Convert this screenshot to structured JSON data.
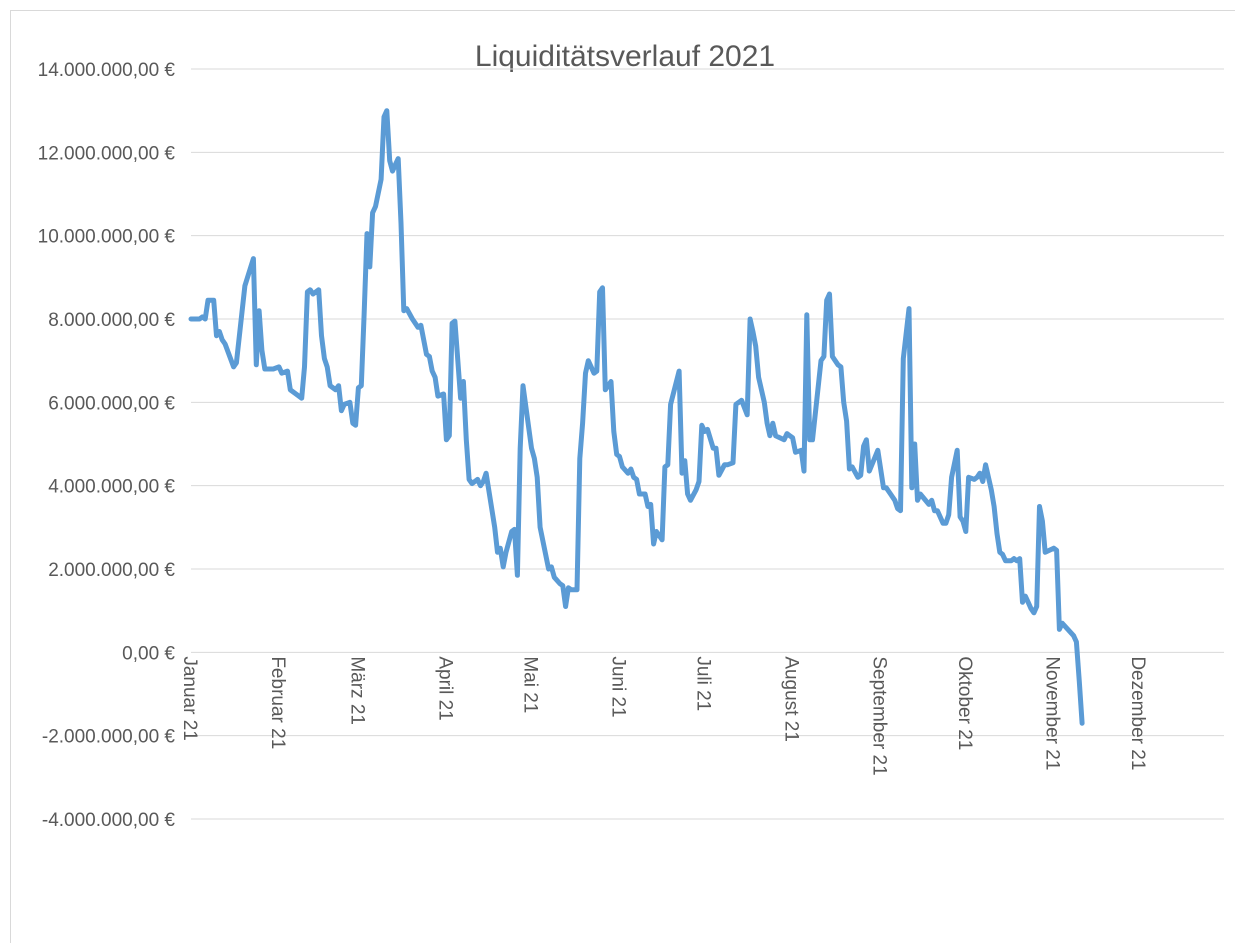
{
  "chart_data": {
    "type": "line",
    "title": "Liquiditätsverlauf 2021",
    "xlabel": "",
    "ylabel": "",
    "ylim": [
      -4000000,
      14000000
    ],
    "xlim": [
      1,
      365
    ],
    "grid": true,
    "legend": "none",
    "y_ticks": [
      -4000000,
      -2000000,
      0,
      2000000,
      4000000,
      6000000,
      8000000,
      10000000,
      12000000,
      14000000
    ],
    "y_tick_labels": [
      "-4.000.000,00 €",
      "-2.000.000,00 €",
      "0,00 €",
      "2.000.000,00 €",
      "4.000.000,00 €",
      "6.000.000,00 €",
      "8.000.000,00 €",
      "10.000.000,00 €",
      "12.000.000,00 €",
      "14.000.000,00 €"
    ],
    "x_ticks": [
      1,
      32,
      60,
      91,
      121,
      152,
      182,
      213,
      244,
      274,
      305,
      335
    ],
    "x_tick_labels": [
      "Januar 21",
      "Februar 21",
      "März 21",
      "April 21",
      "Mai 21",
      "Juni 21",
      "Juli 21",
      "August 21",
      "September 21",
      "Oktober 21",
      "November 21",
      "Dezember 21"
    ],
    "series_color": "#5b9bd5",
    "series": [
      {
        "values": [
          [
            1,
            8000000
          ],
          [
            4,
            8000000
          ],
          [
            5,
            8050000
          ],
          [
            6,
            8000000
          ],
          [
            7,
            8450000
          ],
          [
            9,
            8450000
          ],
          [
            10,
            7600000
          ],
          [
            11,
            7700000
          ],
          [
            12,
            7500000
          ],
          [
            13,
            7400000
          ],
          [
            16,
            6850000
          ],
          [
            17,
            6950000
          ],
          [
            20,
            8800000
          ],
          [
            23,
            9450000
          ],
          [
            24,
            6900000
          ],
          [
            25,
            8200000
          ],
          [
            26,
            7250000
          ],
          [
            27,
            6800000
          ],
          [
            28,
            6800000
          ],
          [
            30,
            6800000
          ],
          [
            32,
            6850000
          ],
          [
            33,
            6700000
          ],
          [
            35,
            6750000
          ],
          [
            36,
            6300000
          ],
          [
            38,
            6200000
          ],
          [
            40,
            6100000
          ],
          [
            41,
            6850000
          ],
          [
            42,
            8650000
          ],
          [
            43,
            8700000
          ],
          [
            44,
            8600000
          ],
          [
            46,
            8700000
          ],
          [
            47,
            7600000
          ],
          [
            48,
            7050000
          ],
          [
            49,
            6850000
          ],
          [
            50,
            6400000
          ],
          [
            52,
            6300000
          ],
          [
            53,
            6400000
          ],
          [
            54,
            5800000
          ],
          [
            55,
            5950000
          ],
          [
            57,
            6000000
          ],
          [
            58,
            5500000
          ],
          [
            59,
            5450000
          ],
          [
            60,
            6350000
          ],
          [
            61,
            6400000
          ],
          [
            62,
            8100000
          ],
          [
            63,
            10050000
          ],
          [
            64,
            9250000
          ],
          [
            65,
            10550000
          ],
          [
            66,
            10700000
          ],
          [
            68,
            11350000
          ],
          [
            69,
            12850000
          ],
          [
            70,
            13000000
          ],
          [
            71,
            11800000
          ],
          [
            72,
            11550000
          ],
          [
            73,
            11700000
          ],
          [
            74,
            11850000
          ],
          [
            75,
            10300000
          ],
          [
            76,
            8200000
          ],
          [
            77,
            8250000
          ],
          [
            79,
            8000000
          ],
          [
            81,
            7800000
          ],
          [
            82,
            7850000
          ],
          [
            84,
            7150000
          ],
          [
            85,
            7100000
          ],
          [
            86,
            6750000
          ],
          [
            87,
            6600000
          ],
          [
            88,
            6150000
          ],
          [
            90,
            6200000
          ],
          [
            91,
            5100000
          ],
          [
            92,
            5200000
          ],
          [
            93,
            7900000
          ],
          [
            94,
            7950000
          ],
          [
            96,
            6100000
          ],
          [
            97,
            6500000
          ],
          [
            98,
            5100000
          ],
          [
            99,
            4150000
          ],
          [
            100,
            4050000
          ],
          [
            102,
            4150000
          ],
          [
            103,
            4000000
          ],
          [
            104,
            4100000
          ],
          [
            105,
            4300000
          ],
          [
            108,
            3000000
          ],
          [
            109,
            2400000
          ],
          [
            110,
            2500000
          ],
          [
            111,
            2050000
          ],
          [
            112,
            2400000
          ],
          [
            114,
            2900000
          ],
          [
            115,
            2950000
          ],
          [
            116,
            1850000
          ],
          [
            117,
            4900000
          ],
          [
            118,
            6400000
          ],
          [
            121,
            4900000
          ],
          [
            122,
            4650000
          ],
          [
            123,
            4200000
          ],
          [
            124,
            3000000
          ],
          [
            127,
            2000000
          ],
          [
            128,
            2050000
          ],
          [
            129,
            1800000
          ],
          [
            131,
            1650000
          ],
          [
            132,
            1600000
          ],
          [
            133,
            1100000
          ],
          [
            134,
            1550000
          ],
          [
            135,
            1500000
          ],
          [
            137,
            1500000
          ],
          [
            138,
            4650000
          ],
          [
            139,
            5500000
          ],
          [
            140,
            6700000
          ],
          [
            141,
            7000000
          ],
          [
            143,
            6700000
          ],
          [
            144,
            6750000
          ],
          [
            145,
            8650000
          ],
          [
            146,
            8750000
          ],
          [
            147,
            6300000
          ],
          [
            149,
            6500000
          ],
          [
            150,
            5300000
          ],
          [
            151,
            4750000
          ],
          [
            152,
            4700000
          ],
          [
            153,
            4450000
          ],
          [
            155,
            4300000
          ],
          [
            156,
            4400000
          ],
          [
            157,
            4200000
          ],
          [
            158,
            4150000
          ],
          [
            159,
            3800000
          ],
          [
            161,
            3800000
          ],
          [
            162,
            3500000
          ],
          [
            163,
            3550000
          ],
          [
            164,
            2600000
          ],
          [
            165,
            2900000
          ],
          [
            167,
            2700000
          ],
          [
            168,
            4450000
          ],
          [
            169,
            4500000
          ],
          [
            170,
            5950000
          ],
          [
            173,
            6750000
          ],
          [
            174,
            4300000
          ],
          [
            175,
            4600000
          ],
          [
            176,
            3800000
          ],
          [
            177,
            3650000
          ],
          [
            179,
            3900000
          ],
          [
            180,
            4100000
          ],
          [
            181,
            5450000
          ],
          [
            182,
            5300000
          ],
          [
            183,
            5350000
          ],
          [
            185,
            4900000
          ],
          [
            186,
            4900000
          ],
          [
            187,
            4250000
          ],
          [
            189,
            4500000
          ],
          [
            190,
            4500000
          ],
          [
            192,
            4550000
          ],
          [
            193,
            5950000
          ],
          [
            195,
            6050000
          ],
          [
            197,
            5700000
          ],
          [
            198,
            8000000
          ],
          [
            199,
            7700000
          ],
          [
            200,
            7350000
          ],
          [
            201,
            6600000
          ],
          [
            203,
            6000000
          ],
          [
            204,
            5500000
          ],
          [
            205,
            5200000
          ],
          [
            206,
            5500000
          ],
          [
            207,
            5200000
          ],
          [
            210,
            5100000
          ],
          [
            211,
            5250000
          ],
          [
            212,
            5200000
          ],
          [
            213,
            5150000
          ],
          [
            214,
            4800000
          ],
          [
            216,
            4850000
          ],
          [
            217,
            4350000
          ],
          [
            218,
            8100000
          ],
          [
            219,
            5100000
          ],
          [
            220,
            5100000
          ],
          [
            223,
            7000000
          ],
          [
            224,
            7100000
          ],
          [
            225,
            8450000
          ],
          [
            226,
            8600000
          ],
          [
            227,
            7100000
          ],
          [
            229,
            6900000
          ],
          [
            230,
            6850000
          ],
          [
            231,
            6000000
          ],
          [
            232,
            5550000
          ],
          [
            233,
            4400000
          ],
          [
            234,
            4450000
          ],
          [
            236,
            4200000
          ],
          [
            237,
            4250000
          ],
          [
            238,
            4950000
          ],
          [
            239,
            5100000
          ],
          [
            240,
            4350000
          ],
          [
            243,
            4850000
          ],
          [
            245,
            3950000
          ],
          [
            246,
            3950000
          ],
          [
            249,
            3650000
          ],
          [
            250,
            3450000
          ],
          [
            251,
            3400000
          ],
          [
            252,
            7050000
          ],
          [
            254,
            8250000
          ],
          [
            255,
            3950000
          ],
          [
            256,
            5000000
          ],
          [
            257,
            3650000
          ],
          [
            258,
            3800000
          ],
          [
            261,
            3550000
          ],
          [
            262,
            3650000
          ],
          [
            263,
            3400000
          ],
          [
            264,
            3400000
          ],
          [
            266,
            3100000
          ],
          [
            267,
            3100000
          ],
          [
            268,
            3300000
          ],
          [
            269,
            4200000
          ],
          [
            271,
            4850000
          ],
          [
            272,
            3250000
          ],
          [
            273,
            3150000
          ],
          [
            274,
            2900000
          ],
          [
            275,
            4200000
          ],
          [
            277,
            4150000
          ],
          [
            278,
            4200000
          ],
          [
            279,
            4300000
          ],
          [
            280,
            4100000
          ],
          [
            281,
            4500000
          ],
          [
            283,
            3900000
          ],
          [
            284,
            3500000
          ],
          [
            285,
            2850000
          ],
          [
            286,
            2400000
          ],
          [
            287,
            2350000
          ],
          [
            288,
            2200000
          ],
          [
            290,
            2200000
          ],
          [
            291,
            2250000
          ],
          [
            292,
            2200000
          ],
          [
            293,
            2250000
          ],
          [
            294,
            1200000
          ],
          [
            295,
            1350000
          ],
          [
            296,
            1200000
          ],
          [
            297,
            1050000
          ],
          [
            298,
            950000
          ],
          [
            299,
            1100000
          ],
          [
            300,
            3500000
          ],
          [
            301,
            3150000
          ],
          [
            302,
            2400000
          ],
          [
            305,
            2500000
          ],
          [
            306,
            2450000
          ],
          [
            307,
            550000
          ],
          [
            308,
            700000
          ],
          [
            310,
            550000
          ],
          [
            312,
            400000
          ],
          [
            313,
            250000
          ],
          [
            314,
            -700000
          ],
          [
            315,
            -1700000
          ]
        ]
      }
    ]
  }
}
